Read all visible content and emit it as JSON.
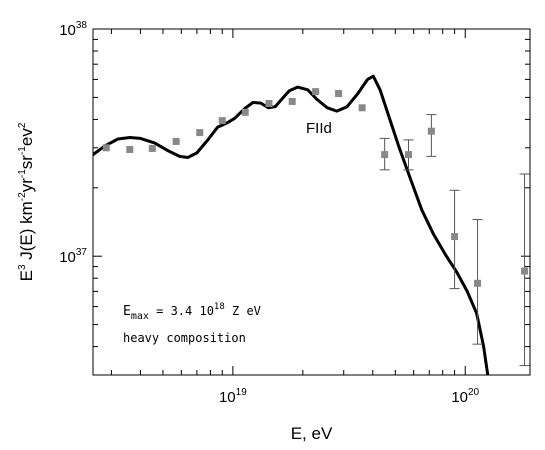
{
  "chart_data": {
    "type": "scatter",
    "title": "",
    "xlabel": "E, eV",
    "ylabel": {
      "parts": [
        {
          "text": "E",
          "sup": "3"
        },
        {
          "text": " J(E) km",
          "sup": "-2"
        },
        {
          "text": "yr",
          "sup": "-1"
        },
        {
          "text": "sr",
          "sup": "-1"
        },
        {
          "text": "ev",
          "sup": "2"
        }
      ]
    },
    "x_scale": "log",
    "y_scale": "log",
    "xlim": [
      2.5e+18,
      1.9e+20
    ],
    "ylim": [
      3e+36,
      1e+38
    ],
    "x_ticks": [
      {
        "value": 1e+19,
        "base": "10",
        "exp": "19"
      },
      {
        "value": 1e+20,
        "base": "10",
        "exp": "20"
      }
    ],
    "y_ticks": [
      {
        "value": 1e+37,
        "base": "10",
        "exp": "37"
      },
      {
        "value": 1e+38,
        "base": "10",
        "exp": "38"
      }
    ],
    "grid": false,
    "series": [
      {
        "kind": "line",
        "label": "FIId",
        "color": "#000000",
        "points": [
          [
            2.5e+18,
            2.8e+37
          ],
          [
            2.8e+18,
            3.05e+37
          ],
          [
            3.2e+18,
            3.28e+37
          ],
          [
            3.6e+18,
            3.33e+37
          ],
          [
            4e+18,
            3.3e+37
          ],
          [
            4.6e+18,
            3.15e+37
          ],
          [
            5.3e+18,
            2.9e+37
          ],
          [
            5.9e+18,
            2.75e+37
          ],
          [
            6.4e+18,
            2.72e+37
          ],
          [
            7e+18,
            2.85e+37
          ],
          [
            7.8e+18,
            3.25e+37
          ],
          [
            8.6e+18,
            3.7e+37
          ],
          [
            9.4e+18,
            3.85e+37
          ],
          [
            1.02e+19,
            4.05e+37
          ],
          [
            1.12e+19,
            4.45e+37
          ],
          [
            1.22e+19,
            4.75e+37
          ],
          [
            1.32e+19,
            4.72e+37
          ],
          [
            1.42e+19,
            4.5e+37
          ],
          [
            1.52e+19,
            4.55e+37
          ],
          [
            1.62e+19,
            4.9e+37
          ],
          [
            1.75e+19,
            5.35e+37
          ],
          [
            1.9e+19,
            5.55e+37
          ],
          [
            2.1e+19,
            5.4e+37
          ],
          [
            2.3e+19,
            4.9e+37
          ],
          [
            2.55e+19,
            4.5e+37
          ],
          [
            2.8e+19,
            4.35e+37
          ],
          [
            3.1e+19,
            4.55e+37
          ],
          [
            3.45e+19,
            5.2e+37
          ],
          [
            3.8e+19,
            6e+37
          ],
          [
            4.02e+19,
            6.2e+37
          ],
          [
            4.3e+19,
            5.4e+37
          ],
          [
            4.7e+19,
            4.1e+37
          ],
          [
            5.2e+19,
            3e+37
          ],
          [
            5.8e+19,
            2.2e+37
          ],
          [
            6.5e+19,
            1.6e+37
          ],
          [
            7.3e+19,
            1.25e+37
          ],
          [
            8.2e+19,
            1.02e+37
          ],
          [
            9.2e+19,
            8.5e+36
          ],
          [
            1.02e+20,
            7e+36
          ],
          [
            1.12e+20,
            5.6e+36
          ],
          [
            1.2e+20,
            4e+36
          ],
          [
            1.25e+20,
            3e+36
          ]
        ]
      },
      {
        "kind": "points",
        "color": "#888888",
        "points": [
          {
            "x": 2.85e+18,
            "y": 3e+37
          },
          {
            "x": 3.6e+18,
            "y": 2.95e+37
          },
          {
            "x": 4.5e+18,
            "y": 2.98e+37
          },
          {
            "x": 5.7e+18,
            "y": 3.2e+37
          },
          {
            "x": 7.2e+18,
            "y": 3.5e+37
          },
          {
            "x": 9e+18,
            "y": 3.95e+37
          },
          {
            "x": 1.13e+19,
            "y": 4.3e+37
          },
          {
            "x": 1.43e+19,
            "y": 4.7e+37
          },
          {
            "x": 1.8e+19,
            "y": 4.8e+37
          },
          {
            "x": 2.27e+19,
            "y": 5.3e+37
          },
          {
            "x": 2.85e+19,
            "y": 5.2e+37
          },
          {
            "x": 3.6e+19,
            "y": 4.5e+37
          },
          {
            "x": 4.5e+19,
            "y": 2.8e+37,
            "yerr": [
              2.4e+37,
              3.3e+37
            ]
          },
          {
            "x": 5.7e+19,
            "y": 2.8e+37,
            "yerr": [
              2.4e+37,
              3.25e+37
            ]
          },
          {
            "x": 7.15e+19,
            "y": 3.55e+37,
            "yerr": [
              2.75e+37,
              4.2e+37
            ]
          },
          {
            "x": 9e+19,
            "y": 1.22e+37,
            "yerr": [
              7.2e+36,
              1.95e+37
            ]
          },
          {
            "x": 1.13e+20,
            "y": 7.6e+36,
            "yerr": [
              4.1e+36,
              1.45e+37
            ]
          },
          {
            "x": 1.8e+20,
            "y": 8.6e+36,
            "yerr": [
              3.3e+36,
              2.3e+37
            ]
          }
        ]
      }
    ],
    "annotations": [
      {
        "type": "emax",
        "prefix": "E",
        "sub": "max",
        "middle": " = 3.4 10",
        "sup": "18",
        "suffix": " Z eV"
      },
      {
        "type": "text",
        "text": "heavy composition"
      }
    ]
  }
}
